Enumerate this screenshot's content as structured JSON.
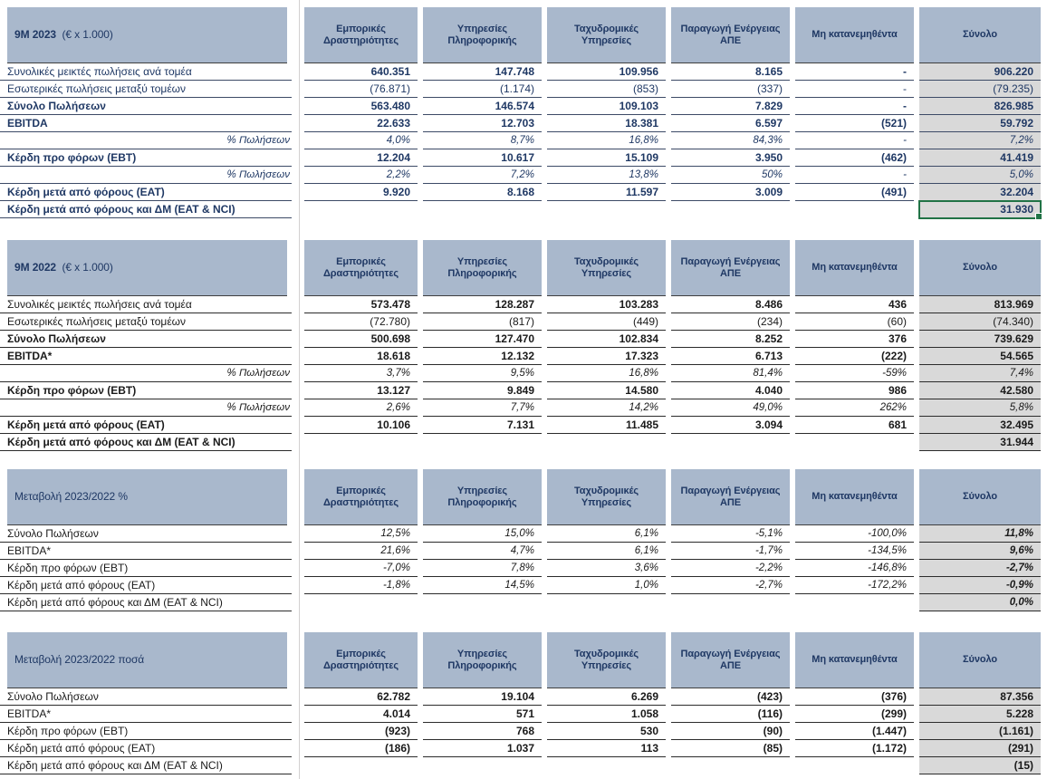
{
  "colors": {
    "header_fill": "#a9b8cc",
    "total_column_fill": "#d9d9d9",
    "table1_text": "#1f3864",
    "other_tables_text": "#1a1a1a",
    "selection_green": "#217346",
    "row_border": "#3f3f3f"
  },
  "columns": [
    "Εμπορικές Δραστηριότητες",
    "Υπηρεσίες Πληροφορικής",
    "Ταχυδρομικές Υπηρεσίες",
    "Παραγωγή Ενέργειας ΑΠΕ",
    "Μη κατανεμηθέντα",
    "Σύνολο"
  ],
  "tables": [
    {
      "id": "9m-2023",
      "title_bold": "9M 2023",
      "title_rest": "  (€ x 1.000)",
      "rows": [
        {
          "label": "Συνολικές μεικτές πωλήσεις ανά τομέα",
          "style": "gross",
          "values": [
            "640.351",
            "147.748",
            "109.956",
            "8.165",
            "-",
            "906.220"
          ]
        },
        {
          "label": "Εσωτερικές πωλήσεις μεταξύ τομέων",
          "style": "inner",
          "values": [
            "(76.871)",
            "(1.174)",
            "(853)",
            "(337)",
            "-",
            "(79.235)"
          ]
        },
        {
          "label": "Σύνολο Πωλήσεων",
          "style": "strong",
          "values": [
            "563.480",
            "146.574",
            "109.103",
            "7.829",
            "-",
            "826.985"
          ]
        },
        {
          "label": "EBITDA",
          "style": "strong",
          "values": [
            "22.633",
            "12.703",
            "18.381",
            "6.597",
            "(521)",
            "59.792"
          ]
        },
        {
          "label": "% Πωλήσεων",
          "style": "pct",
          "values": [
            "4,0%",
            "8,7%",
            "16,8%",
            "84,3%",
            "-",
            "7,2%"
          ]
        },
        {
          "label": "Κέρδη προ φόρων (EBT)",
          "style": "strong",
          "values": [
            "12.204",
            "10.617",
            "15.109",
            "3.950",
            "(462)",
            "41.419"
          ]
        },
        {
          "label": "% Πωλήσεων",
          "style": "pct",
          "values": [
            "2,2%",
            "7,2%",
            "13,8%",
            "50%",
            "-",
            "5,0%"
          ]
        },
        {
          "label": "Κέρδη μετά από φόρους (EAT)",
          "style": "strong",
          "values": [
            "9.920",
            "8.168",
            "11.597",
            "3.009",
            "(491)",
            "32.204"
          ]
        },
        {
          "label": "Κέρδη μετά από φόρους και ΔΜ (EAT & NCI)",
          "style": "nci",
          "selected": true,
          "values": [
            null,
            null,
            null,
            null,
            null,
            "31.930"
          ]
        }
      ]
    },
    {
      "id": "9m-2022",
      "title_bold": "9M 2022",
      "title_rest": "  (€ x 1.000)",
      "rows": [
        {
          "label": "Συνολικές μεικτές πωλήσεις ανά τομέα",
          "style": "gross",
          "values": [
            "573.478",
            "128.287",
            "103.283",
            "8.486",
            "436",
            "813.969"
          ]
        },
        {
          "label": "Εσωτερικές πωλήσεις μεταξύ τομέων",
          "style": "inner",
          "values": [
            "(72.780)",
            "(817)",
            "(449)",
            "(234)",
            "(60)",
            "(74.340)"
          ]
        },
        {
          "label": "Σύνολο Πωλήσεων",
          "style": "strong",
          "values": [
            "500.698",
            "127.470",
            "102.834",
            "8.252",
            "376",
            "739.629"
          ]
        },
        {
          "label": "EBITDA*",
          "style": "strong",
          "values": [
            "18.618",
            "12.132",
            "17.323",
            "6.713",
            "(222)",
            "54.565"
          ]
        },
        {
          "label": "% Πωλήσεων",
          "style": "pct",
          "values": [
            "3,7%",
            "9,5%",
            "16,8%",
            "81,4%",
            "-59%",
            "7,4%"
          ]
        },
        {
          "label": "Κέρδη προ φόρων (EBT)",
          "style": "strong",
          "values": [
            "13.127",
            "9.849",
            "14.580",
            "4.040",
            "986",
            "42.580"
          ]
        },
        {
          "label": "% Πωλήσεων",
          "style": "pct",
          "values": [
            "2,6%",
            "7,7%",
            "14,2%",
            "49,0%",
            "262%",
            "5,8%"
          ]
        },
        {
          "label": "Κέρδη μετά από φόρους (EAT)",
          "style": "strong",
          "values": [
            "10.106",
            "7.131",
            "11.485",
            "3.094",
            "681",
            "32.495"
          ]
        },
        {
          "label": "Κέρδη μετά από φόρους και ΔΜ (EAT & NCI)",
          "style": "nci",
          "values": [
            null,
            null,
            null,
            null,
            null,
            "31.944"
          ]
        }
      ]
    },
    {
      "id": "change-pct",
      "title_bold": "",
      "title_rest": "Μεταβολή 2023/2022 %",
      "rows": [
        {
          "label": "Σύνολο Πωλήσεων",
          "style": "pct3",
          "values": [
            "12,5%",
            "15,0%",
            "6,1%",
            "-5,1%",
            "-100,0%",
            "11,8%"
          ]
        },
        {
          "label": "EBITDA*",
          "style": "pct3",
          "values": [
            "21,6%",
            "4,7%",
            "6,1%",
            "-1,7%",
            "-134,5%",
            "9,6%"
          ]
        },
        {
          "label": "Κέρδη προ φόρων (EBT)",
          "style": "pct3",
          "values": [
            "-7,0%",
            "7,8%",
            "3,6%",
            "-2,2%",
            "-146,8%",
            "-2,7%"
          ]
        },
        {
          "label": "Κέρδη μετά από φόρους (EAT)",
          "style": "pct3",
          "values": [
            "-1,8%",
            "14,5%",
            "1,0%",
            "-2,7%",
            "-172,2%",
            "-0,9%"
          ]
        },
        {
          "label": "Κέρδη μετά από φόρους και ΔΜ (EAT & NCI)",
          "style": "pct3",
          "values": [
            null,
            null,
            null,
            null,
            null,
            "0,0%"
          ]
        }
      ]
    },
    {
      "id": "change-amount",
      "title_bold": "",
      "title_rest": "Μεταβολή 2023/2022 ποσά",
      "rows": [
        {
          "label": "Σύνολο Πωλήσεων",
          "style": "amt",
          "values": [
            "62.782",
            "19.104",
            "6.269",
            "(423)",
            "(376)",
            "87.356"
          ]
        },
        {
          "label": "EBITDA*",
          "style": "amt",
          "values": [
            "4.014",
            "571",
            "1.058",
            "(116)",
            "(299)",
            "5.228"
          ]
        },
        {
          "label": "Κέρδη προ φόρων (EBT)",
          "style": "amt",
          "values": [
            "(923)",
            "768",
            "530",
            "(90)",
            "(1.447)",
            "(1.161)"
          ]
        },
        {
          "label": "Κέρδη μετά από φόρους (EAT)",
          "style": "amt",
          "values": [
            "(186)",
            "1.037",
            "113",
            "(85)",
            "(1.172)",
            "(291)"
          ]
        },
        {
          "label": "Κέρδη μετά από φόρους και ΔΜ (EAT & NCI)",
          "style": "amt",
          "values": [
            null,
            null,
            null,
            null,
            null,
            "(15)"
          ]
        }
      ]
    }
  ]
}
